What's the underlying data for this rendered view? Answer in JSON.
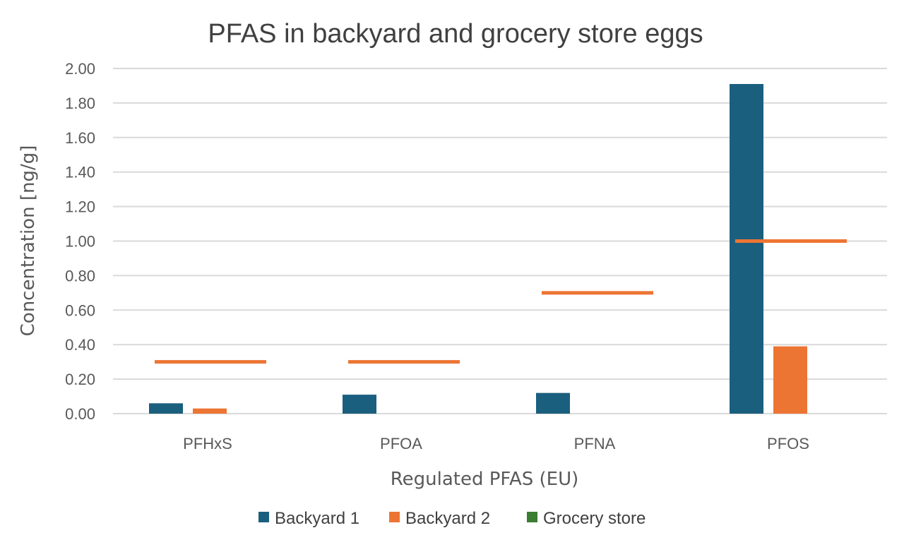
{
  "chart_data": {
    "type": "bar",
    "title": "PFAS in backyard and grocery store eggs",
    "xlabel": "Regulated PFAS (EU)",
    "ylabel": "Concentration [ng/g]",
    "ylim": [
      0,
      2.0
    ],
    "y_tick_step": 0.2,
    "y_tick_decimals": 2,
    "categories": [
      "PFHxS",
      "PFOA",
      "PFNA",
      "PFOS"
    ],
    "series": [
      {
        "name": "Backyard 1",
        "color": "#1b5f7f",
        "values": [
          0.06,
          0.11,
          0.12,
          1.91
        ]
      },
      {
        "name": "Backyard 2",
        "color": "#ed7534",
        "values": [
          0.03,
          0.0,
          0.0,
          0.39
        ]
      },
      {
        "name": "Grocery store",
        "color": "#3b7d33",
        "values": [
          0.0,
          0.0,
          0.0,
          0.0
        ]
      }
    ],
    "reference_lines": {
      "color": "#ed7534",
      "values": [
        0.3,
        0.3,
        0.7,
        1.0
      ]
    },
    "gridlines": true,
    "legend_position": "bottom"
  }
}
